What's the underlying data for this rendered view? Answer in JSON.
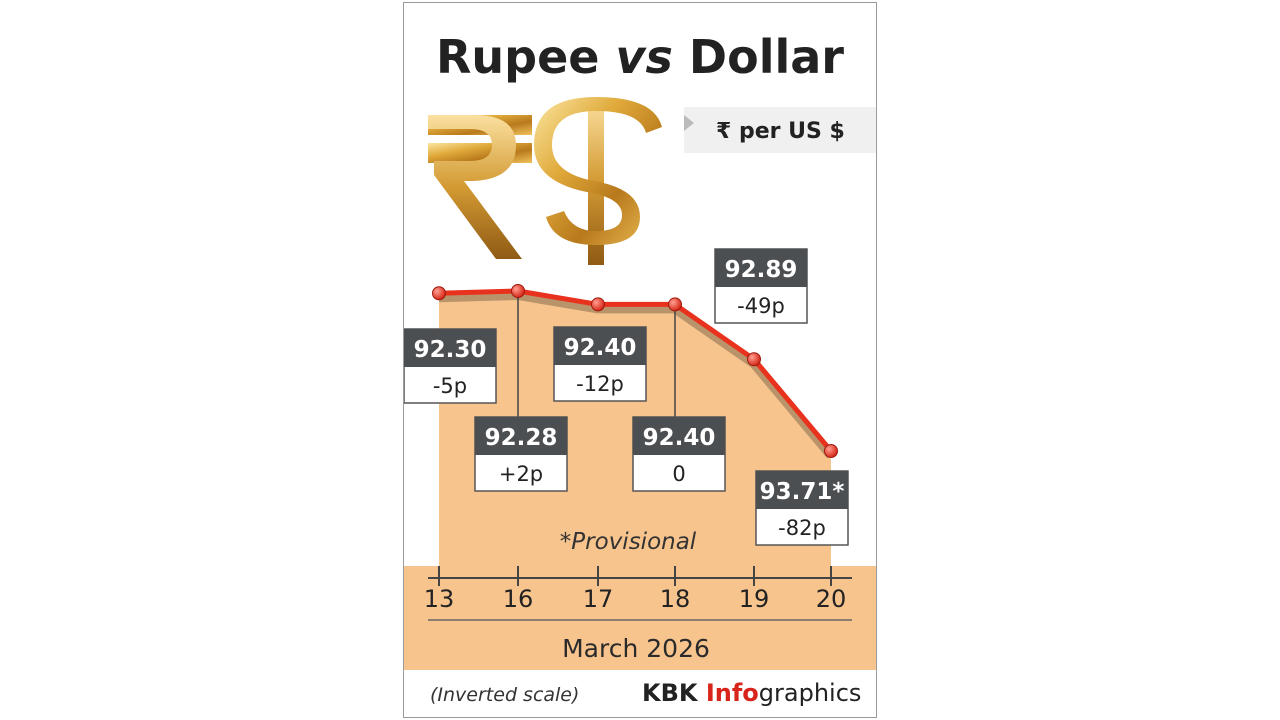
{
  "title": {
    "part1": "Rupee ",
    "part2": "vs",
    "part3": " Dollar"
  },
  "unit_label": "₹ per US $",
  "icons": [
    "rupee-symbol-icon",
    "dollar-symbol-icon"
  ],
  "colors": {
    "line": "#e8321e",
    "area": "#f7c48e",
    "area_shadow": "#b9936a",
    "label_box": "#4c4f52",
    "brand_accent": "#d9241c",
    "text_dark": "#2a2a2a"
  },
  "footer": {
    "note": "(Inverted scale)",
    "brand_prefix": "KBK ",
    "brand_accent": "Info",
    "brand_suffix": "graphics"
  },
  "chart_data": {
    "type": "area",
    "x": [
      "13",
      "16",
      "17",
      "18",
      "19",
      "20"
    ],
    "values": [
      92.3,
      92.28,
      92.4,
      92.4,
      92.89,
      93.71
    ],
    "value_labels": [
      "92.30",
      "92.28",
      "92.40",
      "92.40",
      "92.89",
      "93.71*"
    ],
    "change_labels": [
      "-5p",
      "+2p",
      "-12p",
      "0",
      "-49p",
      "-82p"
    ],
    "xlabel": "March 2026",
    "ylabel": "",
    "y_inverted": true,
    "grid": false,
    "annotation": "*Provisional"
  }
}
